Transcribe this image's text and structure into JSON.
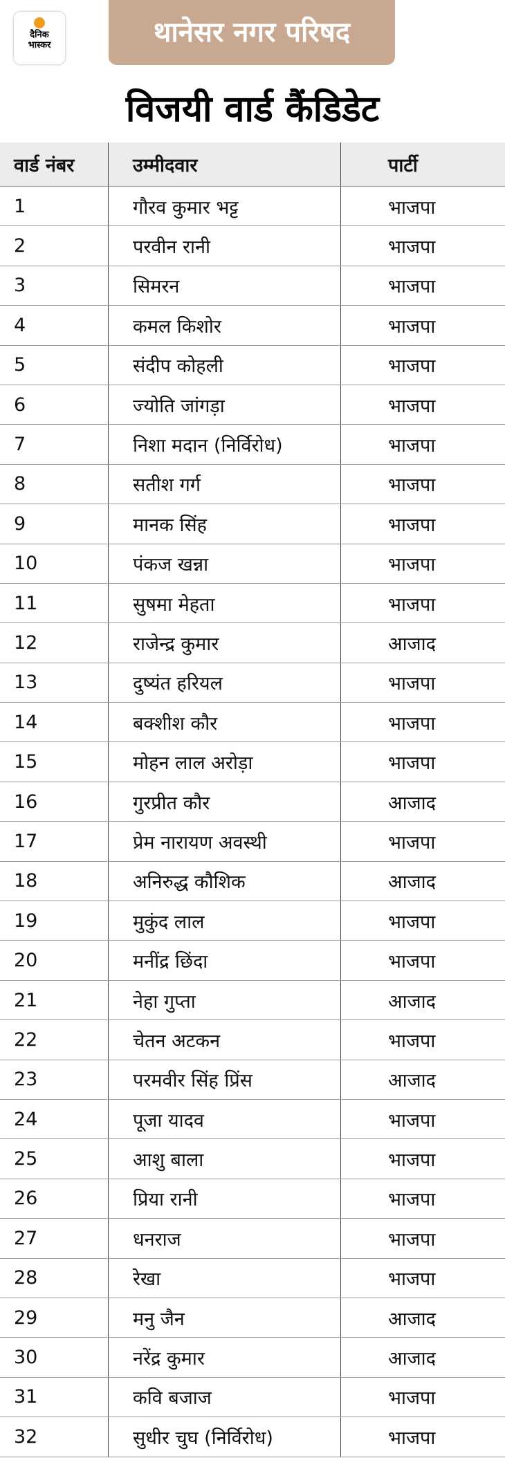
{
  "logo": {
    "line1": "दैनिक",
    "line2": "भास्कर"
  },
  "banner": "थानेसर नगर परिषद",
  "title": "विजयी वार्ड कैंडिडेट",
  "table": {
    "columns": [
      "वार्ड नंबर",
      "उम्मीदवार",
      "पार्टी"
    ],
    "rows": [
      [
        "1",
        "गौरव कुमार भट्ट",
        "भाजपा"
      ],
      [
        "2",
        "परवीन रानी",
        "भाजपा"
      ],
      [
        "3",
        "सिमरन",
        "भाजपा"
      ],
      [
        "4",
        "कमल किशोर",
        "भाजपा"
      ],
      [
        "5",
        "संदीप कोहली",
        "भाजपा"
      ],
      [
        "6",
        "ज्योति जांगड़ा",
        "भाजपा"
      ],
      [
        "7",
        "निशा मदान (निर्विरोध)",
        "भाजपा"
      ],
      [
        "8",
        "सतीश गर्ग",
        "भाजपा"
      ],
      [
        "9",
        "मानक सिंह",
        "भाजपा"
      ],
      [
        "10",
        "पंकज खन्ना",
        "भाजपा"
      ],
      [
        "11",
        "सुषमा मेहता",
        "भाजपा"
      ],
      [
        "12",
        "राजेन्द्र कुमार",
        "आजाद"
      ],
      [
        "13",
        "दुष्यंत हरियल",
        "भाजपा"
      ],
      [
        "14",
        "बक्शीश कौर",
        "भाजपा"
      ],
      [
        "15",
        "मोहन लाल अरोड़ा",
        "भाजपा"
      ],
      [
        "16",
        "गुरप्रीत कौर",
        "आजाद"
      ],
      [
        "17",
        "प्रेम नारायण अवस्थी",
        "भाजपा"
      ],
      [
        "18",
        "अनिरुद्ध कौशिक",
        "आजाद"
      ],
      [
        "19",
        "मुकुंद लाल",
        "भाजपा"
      ],
      [
        "20",
        "मनींद्र छिंदा",
        "भाजपा"
      ],
      [
        "21",
        "नेहा गुप्ता",
        "आजाद"
      ],
      [
        "22",
        "चेतन अटकन",
        "भाजपा"
      ],
      [
        "23",
        "परमवीर सिंह प्रिंस",
        "आजाद"
      ],
      [
        "24",
        "पूजा यादव",
        "भाजपा"
      ],
      [
        "25",
        "आशु बाला",
        "भाजपा"
      ],
      [
        "26",
        "प्रिया रानी",
        "भाजपा"
      ],
      [
        "27",
        "धनराज",
        "भाजपा"
      ],
      [
        "28",
        "रेखा",
        "भाजपा"
      ],
      [
        "29",
        "मनु जैन",
        "आजाद"
      ],
      [
        "30",
        "नरेंद्र कुमार",
        "आजाद"
      ],
      [
        "31",
        "कवि बजाज",
        "भाजपा"
      ],
      [
        "32",
        "सुधीर चुघ (निर्विरोध)",
        "भाजपा"
      ]
    ]
  }
}
